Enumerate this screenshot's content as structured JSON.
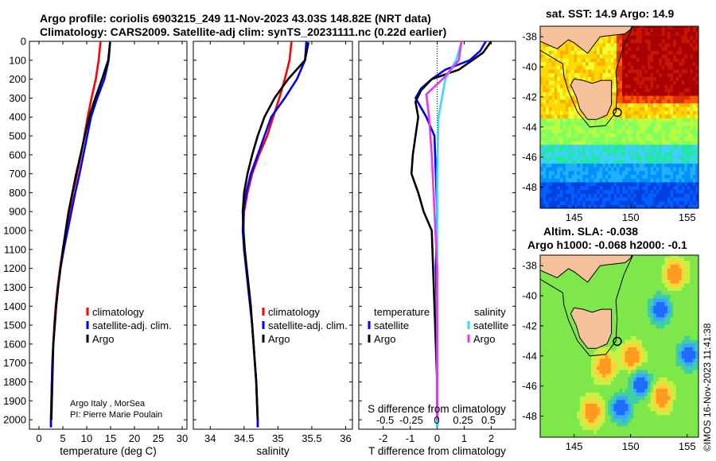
{
  "header": {
    "line1": "Argo profile: coriolis 6903215_249 11-Nov-2023 43.03S 148.82E (NRT data)",
    "line2": "Climatology: CARS2009. Satellite-adj clim: synTS_20231111.nc (0.22d earlier)"
  },
  "colors": {
    "climatology": "#ff0000",
    "satellite": "#0000ff",
    "argo": "#000000",
    "satellite_s": "#33ddff",
    "argo_s": "#ee33ee"
  },
  "credits": {
    "line1": "Argo Italy , MorSea",
    "line2": "PI: Pierre Marie Poulain"
  },
  "watermark": "©IMOS 16-Nov-2023 11:41:38",
  "chart_data": [
    {
      "type": "line",
      "id": "temperature",
      "xlabel": "temperature (deg C)",
      "xlim": [
        -2,
        31
      ],
      "xticks": [
        0,
        5,
        10,
        15,
        20,
        25,
        30
      ],
      "ylim": [
        2050,
        0
      ],
      "yticks": [
        0,
        100,
        200,
        300,
        400,
        500,
        600,
        700,
        800,
        900,
        1000,
        1100,
        1200,
        1300,
        1400,
        1500,
        1600,
        1700,
        1800,
        1900,
        2000
      ],
      "legend": [
        "climatology",
        "satellite-adj. clim.",
        "Argo"
      ],
      "series": [
        {
          "name": "climatology",
          "color": "red",
          "points": [
            [
              12.9,
              0
            ],
            [
              12.5,
              100
            ],
            [
              11.9,
              200
            ],
            [
              11.0,
              300
            ],
            [
              10.2,
              400
            ],
            [
              9.5,
              500
            ],
            [
              8.8,
              600
            ],
            [
              8.0,
              700
            ],
            [
              7.1,
              800
            ],
            [
              6.4,
              900
            ],
            [
              5.7,
              1000
            ],
            [
              5.0,
              1100
            ],
            [
              4.4,
              1200
            ],
            [
              3.9,
              1300
            ],
            [
              3.5,
              1400
            ],
            [
              3.2,
              1500
            ],
            [
              3.0,
              1600
            ],
            [
              2.8,
              1700
            ],
            [
              2.7,
              1800
            ],
            [
              2.6,
              1900
            ],
            [
              2.5,
              2000
            ],
            [
              2.5,
              2040
            ]
          ]
        },
        {
          "name": "satellite-adj. clim.",
          "color": "blue",
          "points": [
            [
              14.9,
              0
            ],
            [
              14.6,
              100
            ],
            [
              13.7,
              200
            ],
            [
              12.2,
              300
            ],
            [
              10.9,
              400
            ],
            [
              10.1,
              500
            ],
            [
              9.3,
              600
            ],
            [
              8.5,
              700
            ],
            [
              7.6,
              800
            ],
            [
              6.8,
              900
            ],
            [
              6.0,
              1000
            ],
            [
              5.2,
              1100
            ],
            [
              4.5,
              1200
            ],
            [
              4.0,
              1300
            ],
            [
              3.6,
              1400
            ],
            [
              3.3,
              1500
            ],
            [
              3.0,
              1600
            ],
            [
              2.8,
              1700
            ],
            [
              2.7,
              1800
            ],
            [
              2.6,
              1900
            ],
            [
              2.5,
              2000
            ],
            [
              2.5,
              2040
            ]
          ]
        },
        {
          "name": "Argo",
          "color": "black",
          "points": [
            [
              14.9,
              5
            ],
            [
              14.5,
              100
            ],
            [
              13.2,
              200
            ],
            [
              11.8,
              300
            ],
            [
              10.5,
              400
            ],
            [
              9.6,
              500
            ],
            [
              8.7,
              600
            ],
            [
              7.8,
              700
            ],
            [
              7.0,
              800
            ],
            [
              6.2,
              900
            ],
            [
              5.6,
              1000
            ],
            [
              5.0,
              1100
            ],
            [
              4.5,
              1200
            ],
            [
              4.0,
              1300
            ],
            [
              3.6,
              1400
            ],
            [
              3.3,
              1500
            ],
            [
              3.0,
              1600
            ],
            [
              2.9,
              1700
            ],
            [
              2.8,
              1800
            ],
            [
              2.7,
              1900
            ],
            [
              2.6,
              2000
            ]
          ]
        }
      ]
    },
    {
      "type": "line",
      "id": "salinity",
      "xlabel": "salinity",
      "xlim": [
        33.75,
        36.1
      ],
      "xticks": [
        34,
        34.5,
        35,
        35.5,
        36
      ],
      "ylim": [
        2050,
        0
      ],
      "legend": [
        "climatology",
        "satellite-adj. clim.",
        "Argo"
      ],
      "series": [
        {
          "name": "climatology",
          "color": "red",
          "points": [
            [
              35.2,
              0
            ],
            [
              35.17,
              100
            ],
            [
              35.1,
              200
            ],
            [
              35.02,
              300
            ],
            [
              34.93,
              400
            ],
            [
              34.84,
              500
            ],
            [
              34.72,
              600
            ],
            [
              34.62,
              700
            ],
            [
              34.55,
              800
            ],
            [
              34.5,
              900
            ],
            [
              34.49,
              1000
            ],
            [
              34.5,
              1100
            ],
            [
              34.53,
              1200
            ],
            [
              34.56,
              1300
            ],
            [
              34.59,
              1400
            ],
            [
              34.62,
              1500
            ],
            [
              34.64,
              1600
            ],
            [
              34.66,
              1700
            ],
            [
              34.68,
              1800
            ],
            [
              34.69,
              1900
            ],
            [
              34.7,
              2000
            ],
            [
              34.7,
              2040
            ]
          ]
        },
        {
          "name": "satellite-adj. clim.",
          "color": "blue",
          "points": [
            [
              35.42,
              0
            ],
            [
              35.4,
              100
            ],
            [
              35.28,
              200
            ],
            [
              35.1,
              300
            ],
            [
              34.9,
              400
            ],
            [
              34.8,
              500
            ],
            [
              34.7,
              600
            ],
            [
              34.6,
              700
            ],
            [
              34.53,
              800
            ],
            [
              34.49,
              900
            ],
            [
              34.48,
              1000
            ],
            [
              34.5,
              1100
            ],
            [
              34.53,
              1200
            ],
            [
              34.56,
              1300
            ],
            [
              34.59,
              1400
            ],
            [
              34.62,
              1500
            ],
            [
              34.64,
              1600
            ],
            [
              34.66,
              1700
            ],
            [
              34.68,
              1800
            ],
            [
              34.69,
              1900
            ],
            [
              34.7,
              2000
            ],
            [
              34.7,
              2040
            ]
          ]
        },
        {
          "name": "Argo",
          "color": "black",
          "points": [
            [
              35.45,
              5
            ],
            [
              35.4,
              100
            ],
            [
              35.15,
              200
            ],
            [
              34.95,
              300
            ],
            [
              34.8,
              400
            ],
            [
              34.7,
              500
            ],
            [
              34.62,
              600
            ],
            [
              34.55,
              700
            ],
            [
              34.5,
              800
            ],
            [
              34.48,
              900
            ],
            [
              34.49,
              1000
            ],
            [
              34.51,
              1100
            ],
            [
              34.54,
              1200
            ],
            [
              34.57,
              1300
            ],
            [
              34.6,
              1400
            ],
            [
              34.62,
              1500
            ],
            [
              34.64,
              1600
            ],
            [
              34.66,
              1700
            ],
            [
              34.68,
              1800
            ],
            [
              34.69,
              1900
            ],
            [
              34.7,
              2000
            ]
          ]
        }
      ]
    },
    {
      "type": "line",
      "id": "difference",
      "xlabel": "T difference from climatology",
      "xlabel_top": "S difference from climatology",
      "xlim": [
        -2.9,
        2.9
      ],
      "xticks": [
        -2,
        -1,
        0,
        1,
        2
      ],
      "xticks_top": [
        "-0.5",
        "-0.25",
        "0",
        "0.25",
        "0.5"
      ],
      "ylim": [
        2050,
        0
      ],
      "legend_left_title": "temperature",
      "legend_right_title": "salinity",
      "legend_left": [
        "satellite",
        "Argo"
      ],
      "legend_right": [
        "satellite",
        "Argo"
      ],
      "series": [
        {
          "name": "temperature satellite",
          "color": "blue",
          "points": [
            [
              1.8,
              0
            ],
            [
              1.6,
              50
            ],
            [
              1.2,
              100
            ],
            [
              0.3,
              150
            ],
            [
              -0.2,
              200
            ],
            [
              -0.6,
              250
            ],
            [
              -0.8,
              300
            ],
            [
              -0.4,
              400
            ],
            [
              -0.1,
              500
            ],
            [
              -0.05,
              700
            ],
            [
              0.0,
              900
            ],
            [
              -0.05,
              1200
            ],
            [
              0.0,
              1500
            ],
            [
              0.0,
              2040
            ]
          ]
        },
        {
          "name": "temperature Argo",
          "color": "black",
          "points": [
            [
              2.0,
              0
            ],
            [
              1.7,
              60
            ],
            [
              1.3,
              100
            ],
            [
              0.8,
              150
            ],
            [
              -0.2,
              200
            ],
            [
              -0.6,
              260
            ],
            [
              -0.8,
              320
            ],
            [
              -0.7,
              400
            ],
            [
              -0.8,
              500
            ],
            [
              -0.9,
              600
            ],
            [
              -0.95,
              700
            ],
            [
              -0.7,
              800
            ],
            [
              -0.5,
              900
            ],
            [
              -0.2,
              1000
            ],
            [
              -0.15,
              1200
            ],
            [
              -0.1,
              1400
            ],
            [
              -0.05,
              1600
            ],
            [
              0.0,
              1800
            ],
            [
              0.0,
              2000
            ]
          ]
        },
        {
          "name": "salinity satellite",
          "color": "cyan",
          "points": [
            [
              0.9,
              0
            ],
            [
              0.7,
              100
            ],
            [
              0.3,
              200
            ],
            [
              0.05,
              400
            ],
            [
              0.0,
              700
            ],
            [
              0.0,
              2040
            ]
          ]
        },
        {
          "name": "salinity Argo",
          "color": "magenta",
          "points": [
            [
              0.9,
              0
            ],
            [
              0.8,
              100
            ],
            [
              0.2,
              200
            ],
            [
              -0.4,
              280
            ],
            [
              -0.3,
              400
            ],
            [
              -0.2,
              600
            ],
            [
              -0.1,
              900
            ],
            [
              0.0,
              1200
            ],
            [
              0.0,
              2000
            ]
          ]
        }
      ]
    },
    {
      "type": "heatmap",
      "id": "sst-map",
      "title": "sat. SST: 14.9 Argo: 14.9",
      "xlim": [
        142,
        156
      ],
      "ylim": [
        -49.4,
        -37.3
      ],
      "xticks": [
        145,
        150,
        155
      ],
      "yticks": [
        -38,
        -40,
        -42,
        -44,
        -46,
        -48
      ],
      "marker": {
        "lon": 148.82,
        "lat": -43.03
      }
    },
    {
      "type": "heatmap",
      "id": "sla-map",
      "title": "Altim. SLA: -0.038",
      "subtitle": "Argo h1000: -0.068 h2000: -0.1",
      "xlim": [
        142,
        156
      ],
      "ylim": [
        -49.4,
        -37.3
      ],
      "xticks": [
        145,
        150,
        155
      ],
      "yticks": [
        -38,
        -40,
        -42,
        -44,
        -46,
        -48
      ],
      "marker": {
        "lon": 148.82,
        "lat": -43.03
      }
    }
  ]
}
